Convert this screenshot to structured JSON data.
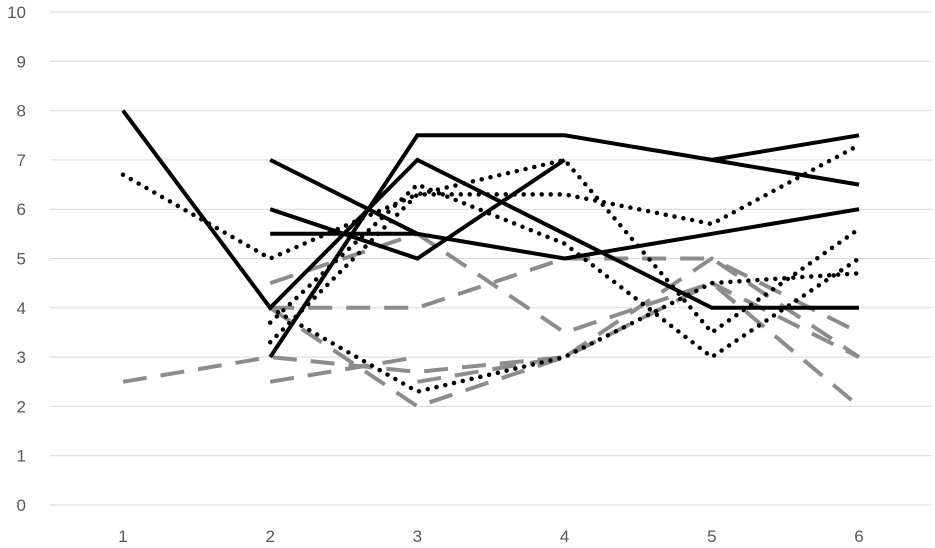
{
  "chart_data": {
    "type": "line",
    "title": "",
    "xlabel": "",
    "ylabel": "",
    "x": [
      1,
      2,
      3,
      4,
      5,
      6
    ],
    "ylim": [
      0,
      10
    ],
    "yticks": [
      0,
      1,
      2,
      3,
      4,
      5,
      6,
      7,
      8,
      9,
      10
    ],
    "xtick_labels": [
      "1",
      "2",
      "3",
      "4",
      "5",
      "6"
    ],
    "ytick_labels": [
      "0",
      "1",
      "2",
      "3",
      "4",
      "5",
      "6",
      "7",
      "8",
      "9",
      "10"
    ],
    "grid": "horizontal",
    "legend": "none",
    "colors": {
      "solid": "#000000",
      "dotted": "#000000",
      "dashed": "#8c8c8c",
      "grid": "#d9d9d9",
      "tick": "#595959"
    },
    "series": [
      {
        "style": "solid",
        "values": [
          8,
          4,
          7,
          5.5,
          4,
          4
        ]
      },
      {
        "style": "solid",
        "values": [
          null,
          7,
          5.5,
          5,
          5.5,
          6
        ]
      },
      {
        "style": "solid",
        "values": [
          null,
          6,
          5,
          7,
          null,
          null
        ]
      },
      {
        "style": "solid",
        "values": [
          null,
          5.5,
          5.5,
          null,
          null,
          null
        ]
      },
      {
        "style": "solid",
        "values": [
          null,
          3,
          7.5,
          7.5,
          7,
          6.5
        ]
      },
      {
        "style": "solid",
        "values": [
          null,
          null,
          null,
          null,
          7,
          7.5
        ]
      },
      {
        "style": "dotted",
        "values": [
          6.7,
          5,
          6.3,
          7,
          3.5,
          5.6
        ]
      },
      {
        "style": "dotted",
        "values": [
          null,
          3.3,
          6.3,
          6.3,
          5.7,
          7.3
        ]
      },
      {
        "style": "dotted",
        "values": [
          null,
          4,
          2.3,
          3,
          4.5,
          4.7
        ]
      },
      {
        "style": "dotted",
        "values": [
          null,
          3.7,
          6.5,
          5.3,
          3,
          5
        ]
      },
      {
        "style": "dashed",
        "values": [
          2.5,
          3,
          2.7,
          3,
          4.5,
          3
        ]
      },
      {
        "style": "dashed",
        "values": [
          null,
          4.5,
          5.5,
          3.5,
          4.5,
          2
        ]
      },
      {
        "style": "dashed",
        "values": [
          null,
          4,
          4,
          5,
          5,
          3
        ]
      },
      {
        "style": "dashed",
        "values": [
          null,
          2.5,
          3,
          null,
          null,
          null
        ]
      },
      {
        "style": "dashed",
        "values": [
          null,
          4,
          2,
          3,
          null,
          null
        ]
      },
      {
        "style": "dashed",
        "values": [
          null,
          null,
          2.5,
          3,
          5,
          3.5
        ]
      }
    ]
  }
}
